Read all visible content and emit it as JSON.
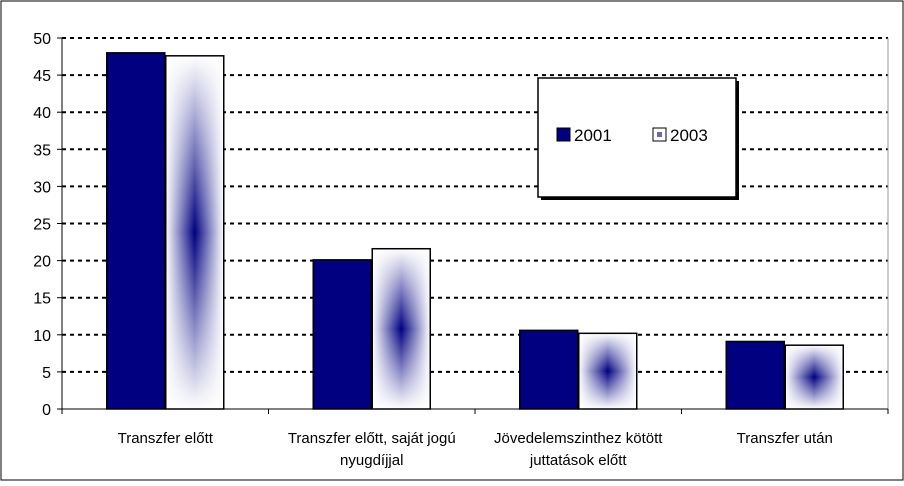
{
  "chart_data": {
    "type": "bar",
    "categories": [
      [
        "Transzfer előtt"
      ],
      [
        "Transzfer előtt, saját jogú",
        "nyugdíjjal"
      ],
      [
        "Jövedelemszinthez kötött",
        "juttatások előtt"
      ],
      [
        "Transzfer után"
      ]
    ],
    "series": [
      {
        "name": "2001",
        "values": [
          48.0,
          20.1,
          10.6,
          9.1
        ],
        "color": "#000080",
        "fill": "solid"
      },
      {
        "name": "2003",
        "values": [
          47.6,
          21.6,
          10.2,
          8.6
        ],
        "color": "#000080",
        "fill": "gradient-center"
      }
    ],
    "ylim": [
      0,
      50
    ],
    "yticks": [
      0,
      5,
      10,
      15,
      20,
      25,
      30,
      35,
      40,
      45,
      50
    ],
    "grid": true,
    "gridStyle": "dashed",
    "legend": {
      "position": "top-right",
      "entries": [
        "2001",
        "2003"
      ]
    },
    "title": "",
    "xlabel": "",
    "ylabel": ""
  }
}
